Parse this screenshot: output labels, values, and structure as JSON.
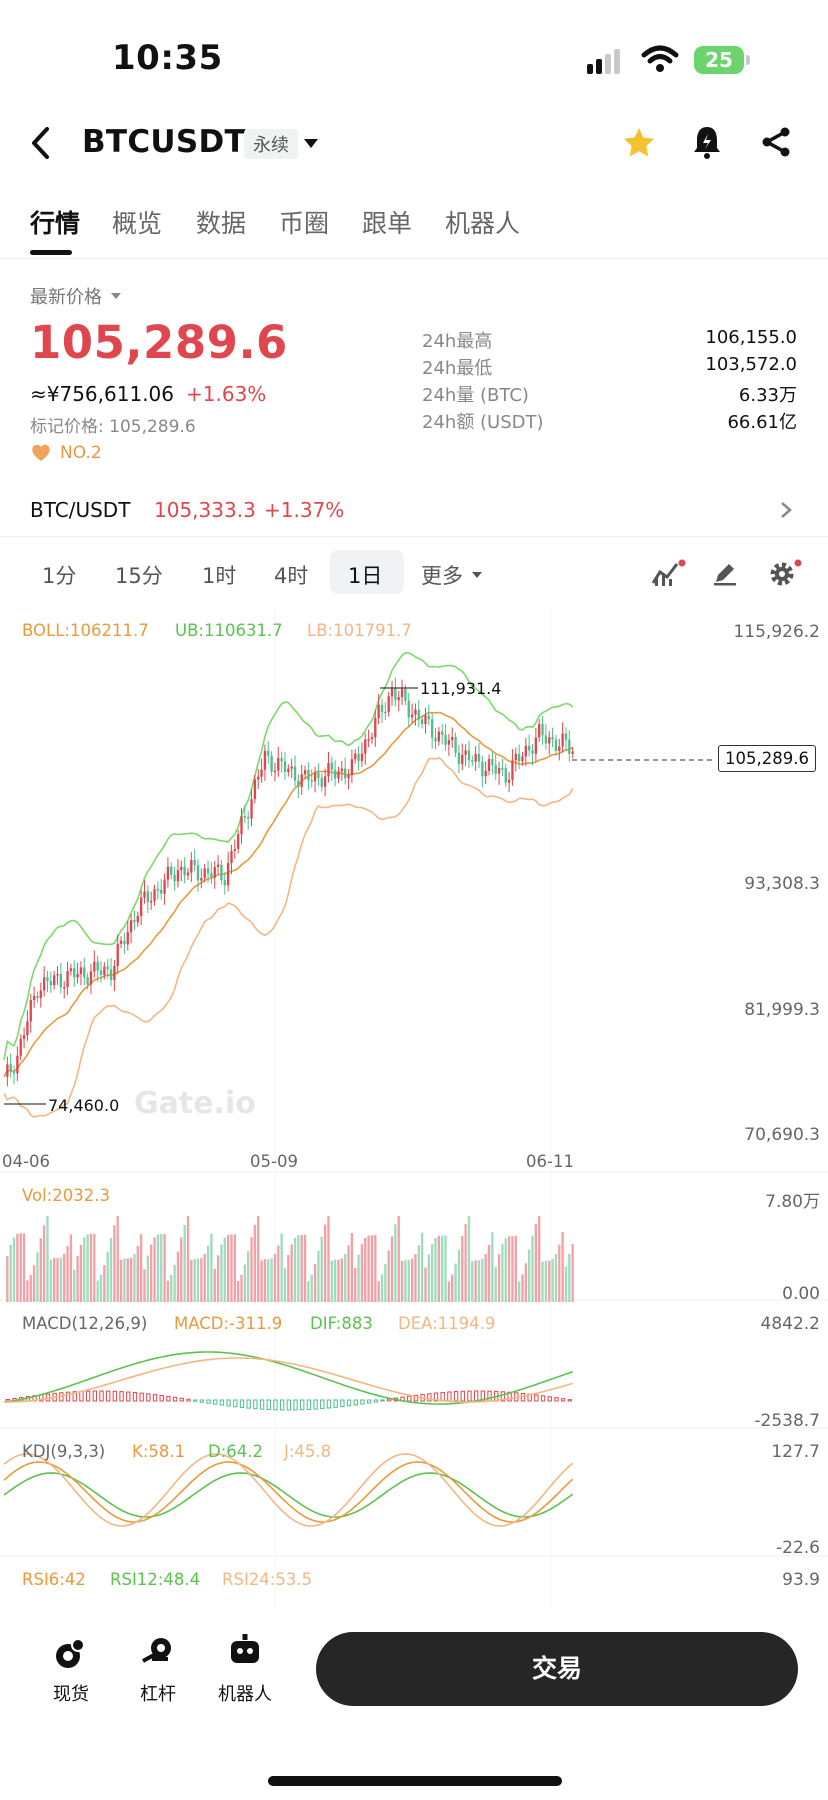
{
  "status_bar": {
    "time": "10:35",
    "battery": "25"
  },
  "header": {
    "title": "BTCUSDT",
    "tag": "永续"
  },
  "tabs": [
    {
      "label": "行情",
      "active": true
    },
    {
      "label": "概览"
    },
    {
      "label": "数据"
    },
    {
      "label": "币圈"
    },
    {
      "label": "跟单"
    },
    {
      "label": "机器人"
    }
  ],
  "price": {
    "latest_label": "最新价格",
    "last": "105,289.6",
    "cny": "≈¥756,611.06",
    "change": "+1.63%",
    "mark": "标记价格: 105,289.6",
    "rank": "NO.2"
  },
  "stats": [
    {
      "label": "24h最高",
      "value": "106,155.0"
    },
    {
      "label": "24h最低",
      "value": "103,572.0"
    },
    {
      "label": "24h量 (BTC)",
      "value": "6.33万"
    },
    {
      "label": "24h额 (USDT)",
      "value": "66.61亿"
    }
  ],
  "spot_row": {
    "pair": "BTC/USDT",
    "price": "105,333.3",
    "change": "+1.37%"
  },
  "timeframes": [
    {
      "label": "1分"
    },
    {
      "label": "15分"
    },
    {
      "label": "1时"
    },
    {
      "label": "4时"
    },
    {
      "label": "1日",
      "active": true
    },
    {
      "label": "更多"
    }
  ],
  "chart": {
    "boll": "BOLL:106211.7",
    "ub": "UB:110631.7",
    "lb": "LB:101791.7",
    "y_ticks": [
      "115,926.2",
      "93,308.3",
      "81,999.3",
      "70,690.3"
    ],
    "x_ticks": [
      "04-06",
      "05-09",
      "06-11"
    ],
    "last_price_tag": "105,289.6",
    "high_marker": "111,931.4",
    "low_marker": "74,460.0",
    "watermark": "Gate.io",
    "colors": {
      "up": "#e0464d",
      "down": "#4cbf8b",
      "mid": "#e89a3c",
      "ub": "#7cd96b",
      "lb": "#f2b784"
    }
  },
  "indicators": {
    "vol": {
      "label": "Vol:2032.3",
      "top": "7.80万",
      "bottom": "0.00"
    },
    "macd": {
      "name": "MACD(12,26,9)",
      "macd": "MACD:-311.9",
      "dif": "DIF:883",
      "dea": "DEA:1194.9",
      "top": "4842.2",
      "bottom": "-2538.7"
    },
    "kdj": {
      "name": "KDJ(9,3,3)",
      "k": "K:58.1",
      "d": "D:64.2",
      "j": "J:45.8",
      "top": "127.7",
      "bottom": "-22.6"
    },
    "rsi": {
      "rsi6": "RSI6:42",
      "rsi12": "RSI12:48.4",
      "rsi24": "RSI24:53.5",
      "top": "93.9"
    }
  },
  "bottom_bar": {
    "spot": "现货",
    "margin": "杠杆",
    "bot": "机器人",
    "trade": "交易"
  }
}
